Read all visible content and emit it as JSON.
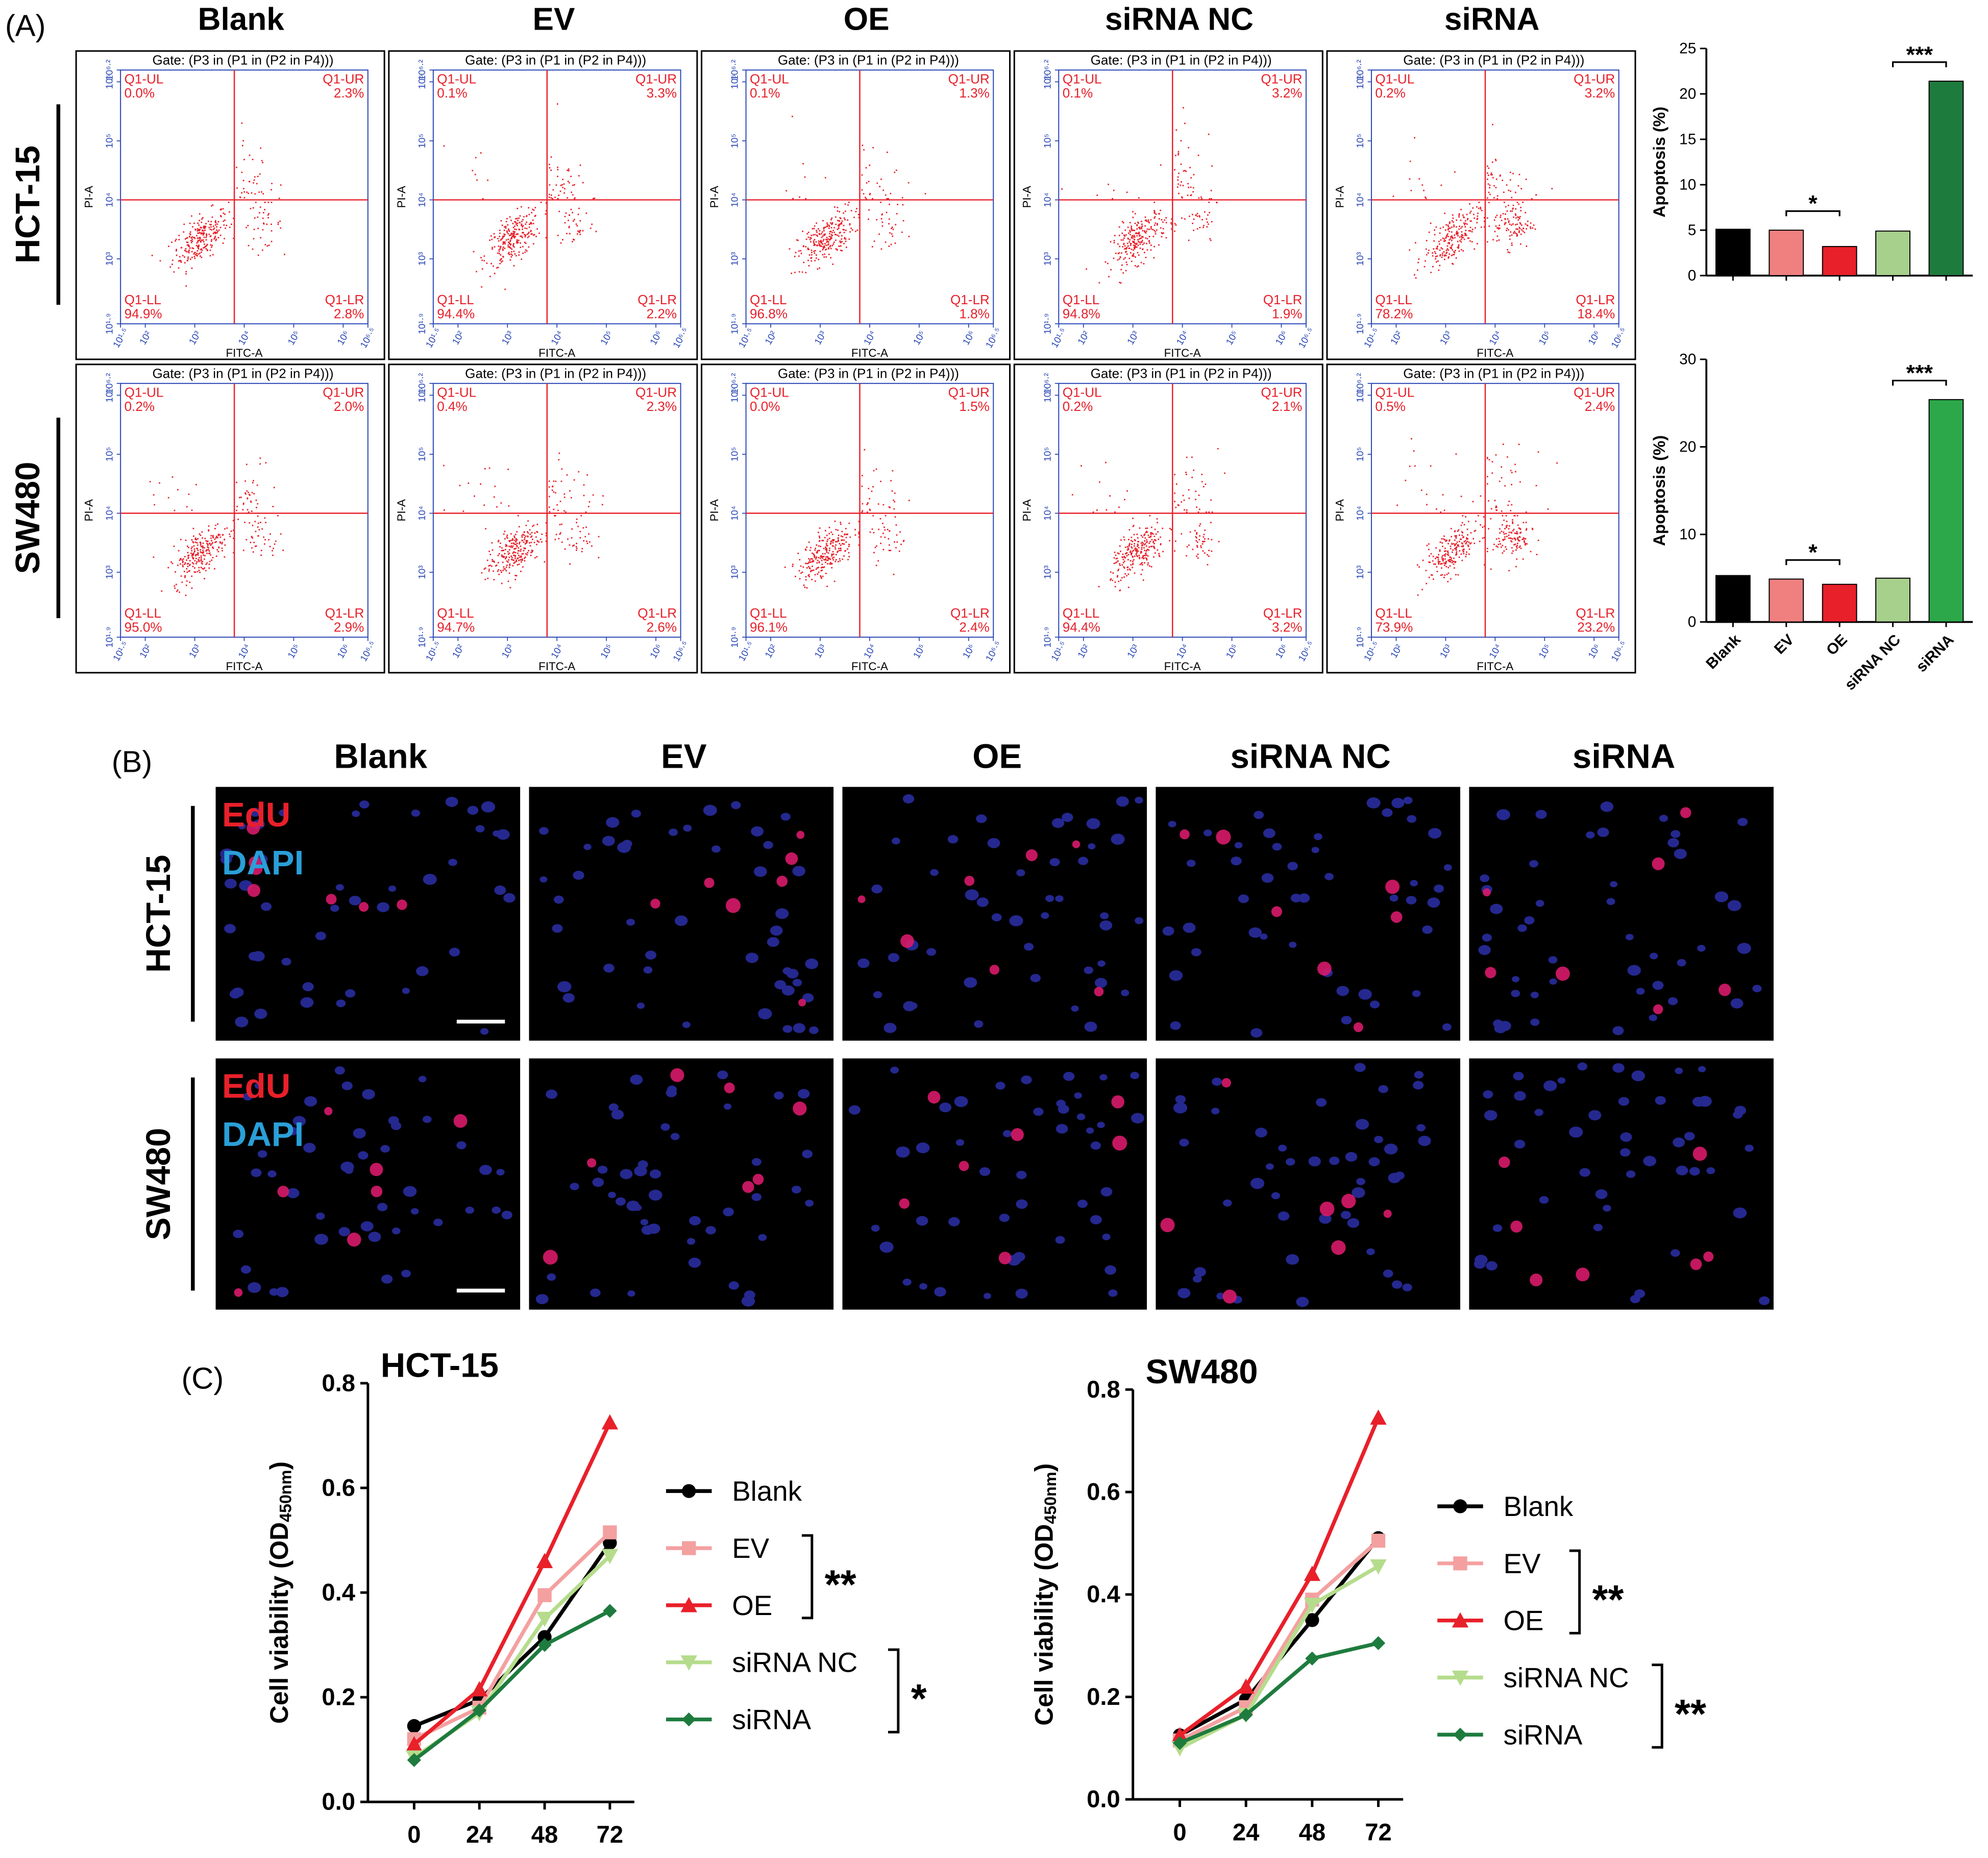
{
  "panel_labels": [
    "(A)",
    "(B)",
    "(C)"
  ],
  "chart_data": [
    {
      "type": "flow",
      "columns": [
        "Blank",
        "EV",
        "OE",
        "siRNA NC",
        "siRNA"
      ],
      "rows": [
        "HCT-15",
        "SW480"
      ],
      "gate": "Gate: (P3 in (P1 in (P2 in P4)))",
      "quadrant_names": [
        "Q1-UL",
        "Q1-UR",
        "Q1-LL",
        "Q1-LR"
      ],
      "x_label": "FITC-A",
      "y_label": "PI-A",
      "xlim": [
        1.5,
        6.5
      ],
      "ylim": [
        1.9,
        6.2
      ],
      "xticks": [
        {
          "value": 1.5,
          "label": "10¹·⁵"
        },
        {
          "value": 2,
          "label": "10²"
        },
        {
          "value": 3,
          "label": "10³"
        },
        {
          "value": 4,
          "label": "10⁴"
        },
        {
          "value": 5,
          "label": "10⁵"
        },
        {
          "value": 6,
          "label": "10⁶"
        },
        {
          "value": 6.5,
          "label": "10⁶·⁵"
        }
      ],
      "yticks": [
        {
          "value": 1.9,
          "label": "10¹·⁹"
        },
        {
          "value": 3,
          "label": "10³"
        },
        {
          "value": 4,
          "label": "10⁴"
        },
        {
          "value": 5,
          "label": "10⁵"
        },
        {
          "value": 6,
          "label": "10⁶"
        },
        {
          "value": 6.2,
          "label": "10⁶·²"
        }
      ],
      "quadrant_x": 3.8,
      "quadrant_y": 4,
      "color": "#e8202a",
      "values": [
        [
          [
            0.0,
            2.3,
            94.9,
            2.8
          ],
          [
            0.1,
            3.3,
            94.4,
            2.2
          ],
          [
            0.1,
            1.3,
            96.8,
            1.8
          ],
          [
            0.1,
            3.2,
            94.8,
            1.9
          ],
          [
            0.2,
            3.2,
            78.2,
            18.4
          ]
        ],
        [
          [
            0.2,
            2.0,
            95.0,
            2.9
          ],
          [
            0.4,
            2.3,
            94.7,
            2.6
          ],
          [
            0.0,
            1.5,
            96.1,
            2.4
          ],
          [
            0.2,
            2.1,
            94.4,
            3.2
          ],
          [
            0.5,
            2.4,
            73.9,
            23.2
          ]
        ]
      ],
      "value_labels": [
        [
          [
            "0.0%",
            "2.3%",
            "94.9%",
            "2.8%"
          ],
          [
            "0.1%",
            "3.3%",
            "94.4%",
            "2.2%"
          ],
          [
            "0.1%",
            "1.3%",
            "96.8%",
            "1.8%"
          ],
          [
            "0.1%",
            "3.2%",
            "94.8%",
            "1.9%"
          ],
          [
            "0.2%",
            "3.2%",
            "78.2%",
            "18.4%"
          ]
        ],
        [
          [
            "0.2%",
            "2.0%",
            "95.0%",
            "2.9%"
          ],
          [
            "0.4%",
            "2.3%",
            "94.7%",
            "2.6%"
          ],
          [
            "0.0%",
            "1.5%",
            "96.1%",
            "2.4%"
          ],
          [
            "0.2%",
            "2.1%",
            "94.4%",
            "3.2%"
          ],
          [
            "0.5%",
            "2.4%",
            "73.9%",
            "23.2%"
          ]
        ]
      ]
    },
    {
      "type": "bar",
      "y_label": "Apoptosis (%)",
      "categories": [
        null,
        null,
        null,
        null,
        null
      ],
      "values": [
        5.1,
        5.0,
        3.2,
        4.9,
        21.4
      ],
      "colors": [
        "#000000",
        "#f08080",
        "#e8202a",
        "#a8d08d",
        "#1e7b3e"
      ],
      "ylim": [
        0,
        25
      ],
      "yticks": [
        0,
        5,
        10,
        15,
        20,
        25
      ],
      "annotations": [
        {
          "text": "*",
          "from": 1,
          "to": 2
        },
        {
          "text": "***",
          "from": 3,
          "to": 4
        }
      ]
    },
    {
      "type": "bar",
      "y_label": "Apoptosis (%)",
      "categories": [
        "Blank",
        "EV",
        "OE",
        "siRNA NC",
        "siRNA"
      ],
      "values": [
        5.3,
        4.9,
        4.3,
        5.0,
        25.4
      ],
      "colors": [
        "#000000",
        "#f08080",
        "#e8202a",
        "#a8d08d",
        "#2ca84a"
      ],
      "ylim": [
        0,
        30
      ],
      "yticks": [
        0,
        10,
        20,
        30
      ],
      "annotations": [
        {
          "text": "*",
          "from": 1,
          "to": 2
        },
        {
          "text": "***",
          "from": 3,
          "to": 4
        }
      ]
    },
    {
      "type": "line",
      "title": "HCT-15",
      "y_label": [
        "Cell viability (OD",
        "450nm",
        ")"
      ],
      "x": [
        0,
        24,
        48,
        72
      ],
      "xlim": [
        -17,
        81
      ],
      "xticks": [
        0,
        24,
        48,
        72
      ],
      "ylim": [
        0,
        0.8
      ],
      "yticks": [
        {
          "value": 0,
          "label": "0.0"
        },
        0.2,
        0.4,
        0.6,
        0.8
      ],
      "legend": "right",
      "series": [
        {
          "name": "Blank",
          "color": "#000000",
          "marker": "circle",
          "values": [
            0.145,
            0.195,
            0.315,
            0.495
          ]
        },
        {
          "name": "EV",
          "color": "#f4a0a0",
          "marker": "square",
          "values": [
            0.12,
            0.18,
            0.395,
            0.515
          ]
        },
        {
          "name": "OE",
          "color": "#e8202a",
          "marker": "triangle",
          "values": [
            0.11,
            0.215,
            0.46,
            0.725
          ]
        },
        {
          "name": "siRNA NC",
          "color": "#b5dc8c",
          "marker": "triangle-down",
          "values": [
            0.085,
            0.17,
            0.35,
            0.47
          ]
        },
        {
          "name": "siRNA",
          "color": "#1e7b3e",
          "marker": "diamond",
          "values": [
            0.08,
            0.175,
            0.3,
            0.365
          ]
        }
      ],
      "annotations": [
        {
          "text": "**",
          "from": 1,
          "to": 2
        },
        {
          "text": "*",
          "from": 3,
          "to": 4
        }
      ]
    },
    {
      "type": "line",
      "title": "SW480",
      "y_label": [
        "Cell viability (OD",
        "450nm",
        ")"
      ],
      "x": [
        0,
        24,
        48,
        72
      ],
      "xlim": [
        -17,
        81
      ],
      "xticks": [
        0,
        24,
        48,
        72
      ],
      "ylim": [
        0,
        0.8
      ],
      "yticks": [
        {
          "value": 0,
          "label": "0.0"
        },
        0.2,
        0.4,
        0.6,
        0.8
      ],
      "legend": "right",
      "series": [
        {
          "name": "Blank",
          "color": "#000000",
          "marker": "circle",
          "values": [
            0.125,
            0.195,
            0.35,
            0.51
          ]
        },
        {
          "name": "EV",
          "color": "#f4a0a0",
          "marker": "square",
          "values": [
            0.115,
            0.18,
            0.39,
            0.505
          ]
        },
        {
          "name": "OE",
          "color": "#e8202a",
          "marker": "triangle",
          "values": [
            0.125,
            0.22,
            0.44,
            0.745
          ]
        },
        {
          "name": "siRNA NC",
          "color": "#b5dc8c",
          "marker": "triangle-down",
          "values": [
            0.1,
            0.165,
            0.38,
            0.455
          ]
        },
        {
          "name": "siRNA",
          "color": "#1e7b3e",
          "marker": "diamond",
          "values": [
            0.11,
            0.165,
            0.275,
            0.305
          ]
        }
      ],
      "annotations": [
        {
          "text": "**",
          "from": 1,
          "to": 2
        },
        {
          "text": "**",
          "from": 3,
          "to": 4
        }
      ]
    }
  ],
  "edu": {
    "columns": [
      "Blank",
      "EV",
      "OE",
      "siRNA NC",
      "siRNA"
    ],
    "rows": [
      "HCT-15",
      "SW480"
    ],
    "stains": [
      {
        "name": "EdU",
        "color": "#e8202a"
      },
      {
        "name": "DAPI",
        "color": "#2a9fd8"
      }
    ]
  }
}
